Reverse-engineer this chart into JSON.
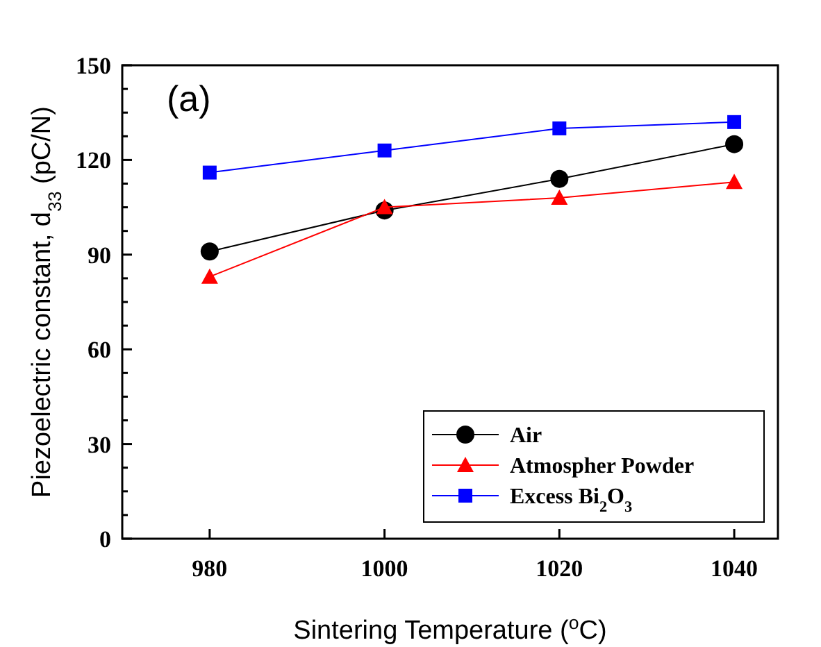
{
  "chart_data": {
    "type": "line",
    "xlabel": "Sintering Temperature ($^{o}$C)",
    "ylabel": "Piezoelectric constant, d$_{33}$ (pC/N)",
    "annotations": [
      "(a)"
    ],
    "x": [
      980,
      1000,
      1020,
      1040
    ],
    "xlim": [
      970,
      1045
    ],
    "xticks": [
      980,
      1000,
      1020,
      1040
    ],
    "ylim": [
      0,
      150
    ],
    "yticks": [
      0,
      {
        "value": 7.5,
        "label": null
      },
      {
        "value": 15,
        "label": null
      },
      {
        "value": 22.5,
        "label": null
      },
      30,
      {
        "value": 37.5,
        "label": null
      },
      {
        "value": 45,
        "label": null
      },
      {
        "value": 52.5,
        "label": null
      },
      60,
      {
        "value": 67.5,
        "label": null
      },
      {
        "value": 75,
        "label": null
      },
      {
        "value": 82.5,
        "label": null
      },
      90,
      {
        "value": 97.5,
        "label": null
      },
      {
        "value": 105,
        "label": null
      },
      {
        "value": 112.5,
        "label": null
      },
      120,
      {
        "value": 127.5,
        "label": null
      },
      {
        "value": 135,
        "label": null
      },
      {
        "value": 142.5,
        "label": null
      },
      150
    ],
    "legend": "bottom right",
    "grid": false,
    "line_style": "solid",
    "series": [
      {
        "name": "Air",
        "color": "#000000",
        "marker": "circle",
        "values": [
          91,
          104,
          114,
          125
        ]
      },
      {
        "name": "Atmospher Powder",
        "color": "#ff0000",
        "marker": "triangle",
        "values": [
          83,
          105,
          108,
          113
        ]
      },
      {
        "name": "Excess Bi$_{2}$O$_{3}$",
        "color": "#0000ff",
        "marker": "square",
        "values": [
          116,
          123,
          130,
          132
        ]
      }
    ]
  }
}
